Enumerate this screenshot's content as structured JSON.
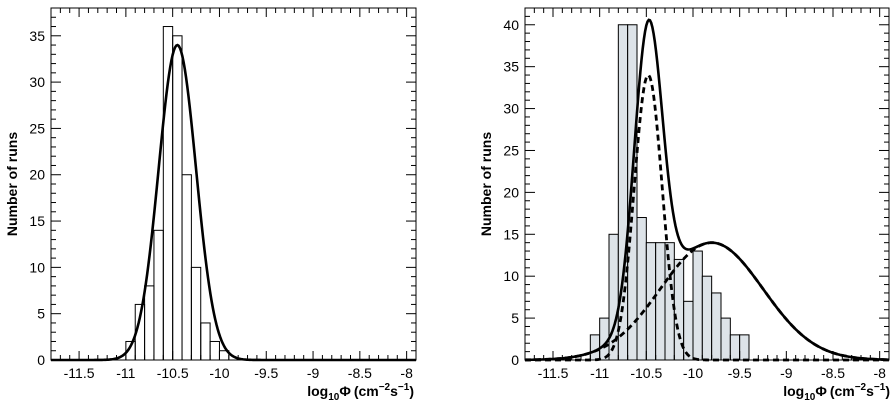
{
  "chart_data": [
    {
      "type": "histogram",
      "ylabel": "Number of runs",
      "xlabel": {
        "prefix": "log",
        "sub": "10",
        "phi": "Φ",
        "units": "(cm",
        "exp1": "−2",
        "mid": "s",
        "exp2": "−1",
        "close": ")"
      },
      "xlim": [
        -11.8,
        -7.9
      ],
      "ylim": [
        0,
        38
      ],
      "xticks": [
        -11.5,
        -11,
        -10.5,
        -10,
        -9.5,
        -9,
        -8.5,
        -8
      ],
      "xtick_labels": [
        "-11.5",
        "-11",
        "-10.5",
        "-10",
        "-9.5",
        "-9",
        "-8.5",
        "-8"
      ],
      "yticks": [
        0,
        5,
        10,
        15,
        20,
        25,
        30,
        35
      ],
      "ytick_labels": [
        "0",
        "5",
        "10",
        "15",
        "20",
        "25",
        "30",
        "35"
      ],
      "bin_width": 0.1,
      "bin_edges_start": -11.0,
      "counts": [
        2,
        6,
        8,
        14,
        36,
        35,
        20,
        10,
        4,
        2,
        1
      ],
      "fit": {
        "shape": "gaussian",
        "mean": -10.45,
        "sigma": 0.2,
        "amplitude": 34
      }
    },
    {
      "type": "histogram",
      "ylabel": "Number of runs",
      "xlabel": {
        "prefix": "log",
        "sub": "10",
        "phi": "Φ",
        "units": "(cm",
        "exp1": "−2",
        "mid": "s",
        "exp2": "−1",
        "close": ")"
      },
      "xlim": [
        -11.8,
        -7.9
      ],
      "ylim": [
        0,
        42
      ],
      "xticks": [
        -11.5,
        -11,
        -10.5,
        -10,
        -9.5,
        -9,
        -8.5,
        -8
      ],
      "xtick_labels": [
        "-11.5",
        "-11",
        "-10.5",
        "-10",
        "-9.5",
        "-9",
        "-8.5",
        "-8"
      ],
      "yticks": [
        0,
        5,
        10,
        15,
        20,
        25,
        30,
        35,
        40
      ],
      "ytick_labels": [
        "0",
        "5",
        "10",
        "15",
        "20",
        "25",
        "30",
        "35",
        "40"
      ],
      "bin_width": 0.1,
      "bin_edges_start": -11.1,
      "counts": [
        3,
        5,
        15,
        40,
        40,
        17,
        14,
        14,
        14,
        12,
        7,
        13,
        10,
        8,
        5,
        3,
        3
      ],
      "fit": {
        "shape": "double-gaussian",
        "components": [
          {
            "mean": -10.48,
            "sigma": 0.15,
            "amplitude": 34
          },
          {
            "mean": -9.8,
            "sigma": 0.55,
            "amplitude": 14
          }
        ]
      }
    }
  ]
}
